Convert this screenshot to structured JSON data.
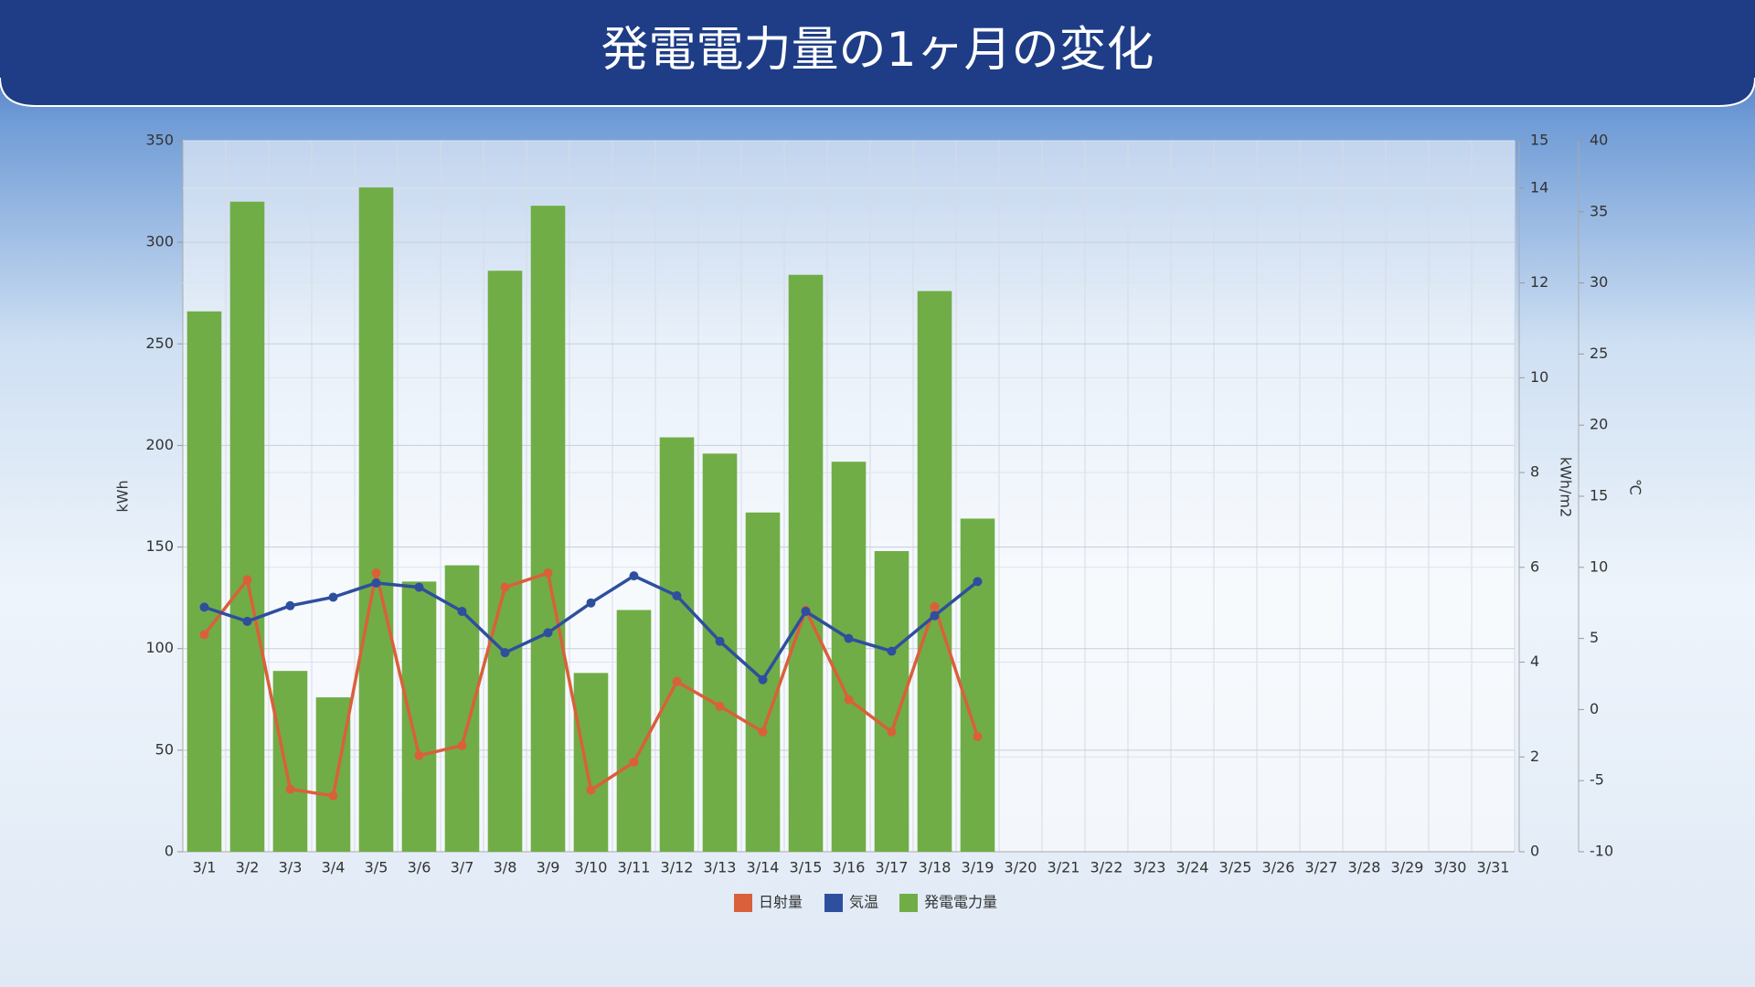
{
  "chart_data": {
    "type": "bar",
    "title": "発電電力量の1ヶ月の変化",
    "categories": [
      "3/1",
      "3/2",
      "3/3",
      "3/4",
      "3/5",
      "3/6",
      "3/7",
      "3/8",
      "3/9",
      "3/10",
      "3/11",
      "3/12",
      "3/13",
      "3/14",
      "3/15",
      "3/16",
      "3/17",
      "3/18",
      "3/19",
      "3/20",
      "3/21",
      "3/22",
      "3/23",
      "3/24",
      "3/25",
      "3/26",
      "3/27",
      "3/28",
      "3/29",
      "3/30",
      "3/31"
    ],
    "ylabel": "kWh",
    "ylim": [
      0,
      350
    ],
    "yticks": [
      0,
      50,
      100,
      150,
      200,
      250,
      300,
      350
    ],
    "y2label": "kWh/m2",
    "y2lim": [
      0,
      15
    ],
    "y2ticks": [
      0,
      2,
      4,
      6,
      8,
      10,
      12,
      14,
      15
    ],
    "y3label": "℃",
    "y3lim": [
      -10,
      40
    ],
    "y3ticks": [
      -10,
      -5,
      0,
      5,
      10,
      15,
      20,
      25,
      30,
      35,
      40
    ],
    "grid": true,
    "legend": "bottom",
    "series": [
      {
        "name": "日射量",
        "type": "line",
        "axis": "y2",
        "color": "#d9603b",
        "values": [
          4.58,
          5.74,
          1.32,
          1.18,
          5.88,
          2.03,
          2.24,
          5.58,
          5.88,
          1.3,
          1.89,
          3.59,
          3.07,
          2.53,
          5.1,
          3.21,
          2.53,
          5.17,
          2.43,
          null,
          null,
          null,
          null,
          null,
          null,
          null,
          null,
          null,
          null,
          null,
          null
        ]
      },
      {
        "name": "気温",
        "type": "line",
        "axis": "y3",
        "color": "#2e4f9e",
        "values": [
          7.2,
          6.2,
          7.3,
          7.9,
          8.9,
          8.6,
          6.9,
          4.0,
          5.4,
          7.5,
          9.4,
          8.0,
          4.8,
          2.1,
          6.9,
          5.0,
          4.1,
          6.6,
          9.0,
          null,
          null,
          null,
          null,
          null,
          null,
          null,
          null,
          null,
          null,
          null,
          null
        ]
      },
      {
        "name": "発電電力量",
        "type": "bar",
        "axis": "y",
        "color": "#70ad47",
        "values": [
          266,
          320,
          89,
          76,
          327,
          133,
          141,
          286,
          318,
          88,
          119,
          204,
          196,
          167,
          284,
          192,
          148,
          276,
          164,
          null,
          null,
          null,
          null,
          null,
          null,
          null,
          null,
          null,
          null,
          null,
          null
        ]
      }
    ]
  }
}
